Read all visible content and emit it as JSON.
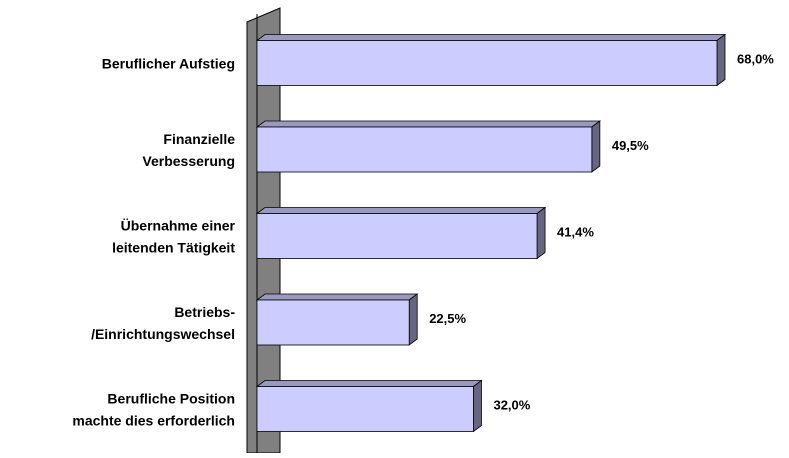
{
  "chart_data": {
    "type": "bar",
    "orientation": "horizontal",
    "categories": [
      [
        "Beruflicher Aufstieg"
      ],
      [
        "Finanzielle",
        "Verbesserung"
      ],
      [
        "Übernahme einer",
        "leitenden Tätigkeit"
      ],
      [
        "Betriebs-",
        "/Einrichtungswechsel"
      ],
      [
        "Berufliche Position",
        "machte dies erforderlich"
      ]
    ],
    "values": [
      68.0,
      49.5,
      41.4,
      22.5,
      32.0
    ],
    "value_labels": [
      "68,0%",
      "49,5%",
      "41,4%",
      "22,5%",
      "32,0%"
    ],
    "color": "#ccccff"
  }
}
